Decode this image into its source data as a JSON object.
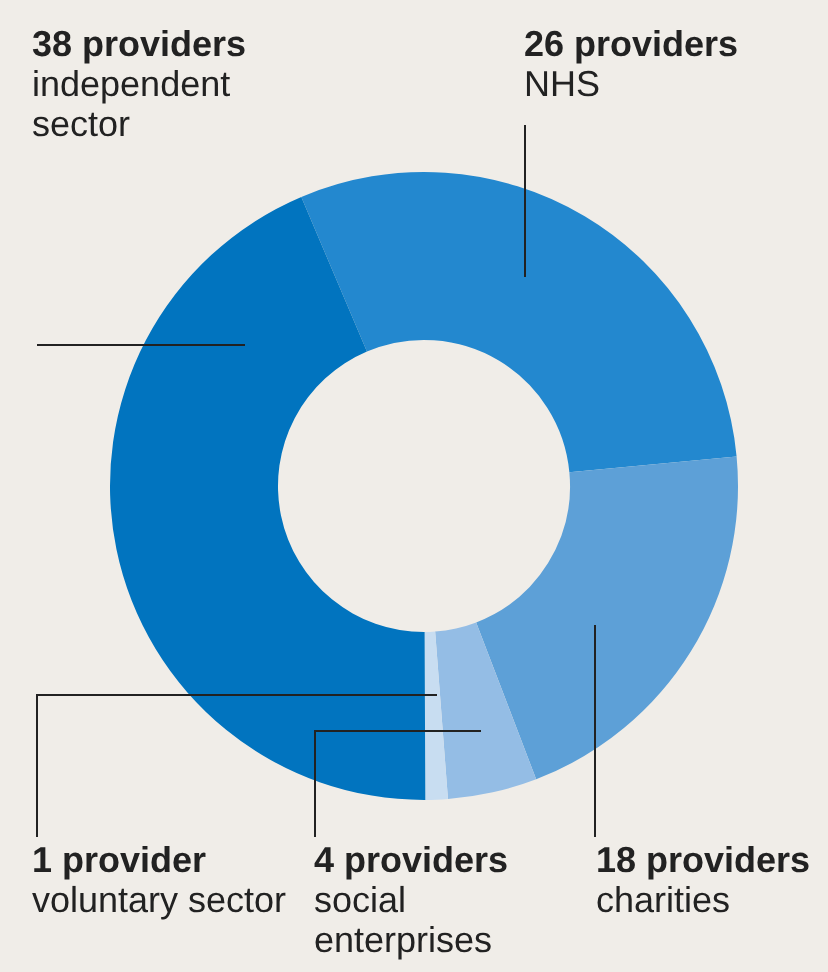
{
  "chart_data": {
    "type": "donut",
    "categories": [
      "NHS",
      "charities",
      "social enterprises",
      "voluntary sector",
      "independent sector"
    ],
    "values": [
      26,
      18,
      4,
      1,
      38
    ],
    "colors": [
      "#2388cf",
      "#5da0d7",
      "#94bde5",
      "#c8ddf1",
      "#0174bf"
    ],
    "value_labels": [
      "26 providers",
      "18 providers",
      "4 providers",
      "1 provider",
      "38 providers"
    ]
  }
}
